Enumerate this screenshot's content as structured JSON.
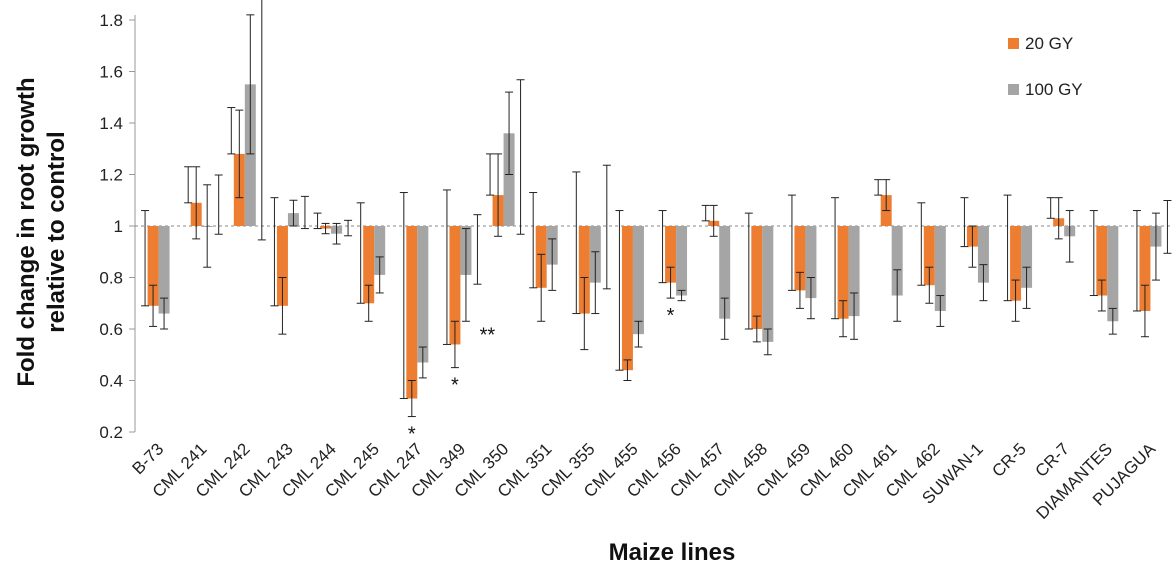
{
  "chart_data": {
    "type": "bar",
    "title": "",
    "xlabel": "Maize lines",
    "ylabel_lines": [
      "Fold change in root growth",
      "relative to control"
    ],
    "ylim": [
      0.2,
      1.8
    ],
    "yticks": [
      "0.2",
      "0.4",
      "0.6",
      "0.8",
      "1",
      "1.2",
      "1.4",
      "1.6",
      "1.8"
    ],
    "baseline": 1,
    "legend_position": "top-right",
    "categories": [
      "B-73",
      "CML 241",
      "CML 242",
      "CML 243",
      "CML 244",
      "CML 245",
      "CML 247",
      "CML 349",
      "CML 350",
      "CML 351",
      "CML 355",
      "CML 455",
      "CML 456",
      "CML 457",
      "CML 458",
      "CML 459",
      "CML 460",
      "CML 461",
      "CML 462",
      "SUWAN-1",
      "CR-5",
      "CR-7",
      "DIAMANTES",
      "PUJAGUA"
    ],
    "series": [
      {
        "name": "20 GY",
        "color": "#ED7D31",
        "values": [
          0.69,
          1.09,
          1.28,
          0.69,
          0.99,
          0.7,
          0.33,
          0.54,
          1.12,
          0.76,
          0.66,
          0.44,
          0.78,
          1.02,
          0.6,
          0.75,
          0.64,
          1.12,
          0.77,
          0.92,
          0.71,
          1.03,
          0.73,
          0.67
        ],
        "errors": [
          0.08,
          0.14,
          0.17,
          0.11,
          0.02,
          0.07,
          0.07,
          0.09,
          0.16,
          0.13,
          0.14,
          0.04,
          0.06,
          0.06,
          0.05,
          0.07,
          0.07,
          0.06,
          0.07,
          0.08,
          0.08,
          0.08,
          0.06,
          0.1
        ]
      },
      {
        "name": "100 GY",
        "color": "#A5A5A5",
        "values": [
          0.66,
          1.0,
          1.55,
          1.05,
          0.97,
          0.81,
          0.47,
          0.81,
          1.36,
          0.85,
          0.78,
          0.58,
          0.73,
          0.64,
          0.55,
          0.72,
          0.65,
          0.73,
          0.67,
          0.78,
          0.76,
          0.96,
          0.63,
          0.92
        ]
      }
    ],
    "bar_errors_100": [
      0.06,
      0.16,
      0.27,
      0.05,
      0.04,
      0.07,
      0.06,
      0.18,
      0.16,
      0.1,
      0.12,
      0.05,
      0.02,
      0.08,
      0.05,
      0.08,
      0.09,
      0.1,
      0.06,
      0.07,
      0.08,
      0.1,
      0.05,
      0.13
    ],
    "error_above_20": [
      0.37,
      0.06,
      0.18,
      0.42,
      0.06,
      0.39,
      0.8,
      0.6,
      0.0,
      0.37,
      0.55,
      0.62,
      0.28,
      0.06,
      0.45,
      0.37,
      0.47,
      0.06,
      0.32,
      0.19,
      0.41,
      0.08,
      0.33,
      0.39
    ],
    "error_above_100": [
      0.0,
      0.15,
      0.26,
      0.05,
      0.04,
      0.0,
      0.0,
      0.18,
      0.16,
      0.0,
      0.42,
      0.0,
      0.0,
      0.0,
      0.0,
      0.0,
      0.0,
      0.0,
      0.0,
      0.0,
      0.0,
      0.0,
      0.0,
      0.14
    ],
    "annotations": [
      {
        "category": "CML 247",
        "series": "20 GY",
        "text": "*"
      },
      {
        "category": "CML 349",
        "series": "20 GY",
        "text": "*"
      },
      {
        "category": "CML 349",
        "series": "100 GY",
        "text": "**"
      },
      {
        "category": "CML 456",
        "series": "20 GY",
        "text": "*"
      }
    ]
  }
}
